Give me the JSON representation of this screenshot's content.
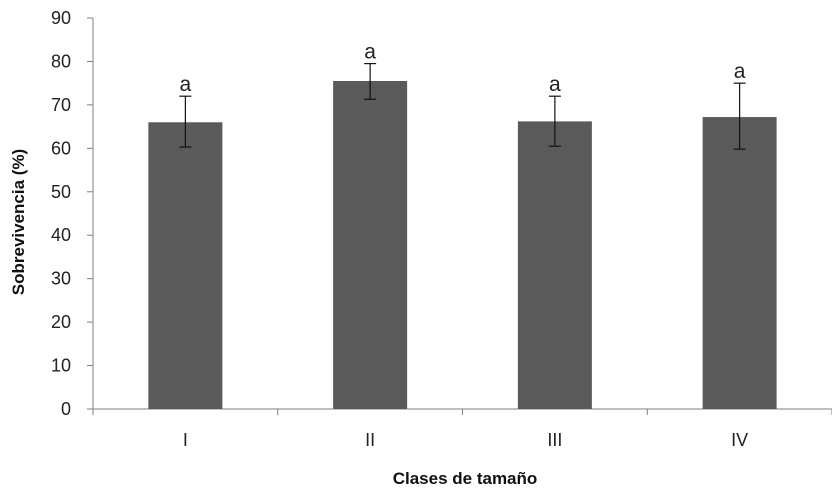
{
  "chart_data": {
    "type": "bar",
    "categories": [
      "I",
      "II",
      "III",
      "IV"
    ],
    "values": [
      66,
      75.5,
      66.2,
      67.2
    ],
    "error_low": [
      60.3,
      71.3,
      60.5,
      59.8
    ],
    "error_high": [
      72,
      79.5,
      72,
      75
    ],
    "annotations": [
      "a",
      "a",
      "a",
      "a"
    ],
    "xlabel": "Clases de tamaño",
    "ylabel": "Sobrevivencia (%)",
    "ylim": [
      0,
      90
    ],
    "yticks": [
      0,
      10,
      20,
      30,
      40,
      50,
      60,
      70,
      80,
      90
    ],
    "bar_color": "#5a5a5a",
    "grid": false
  }
}
